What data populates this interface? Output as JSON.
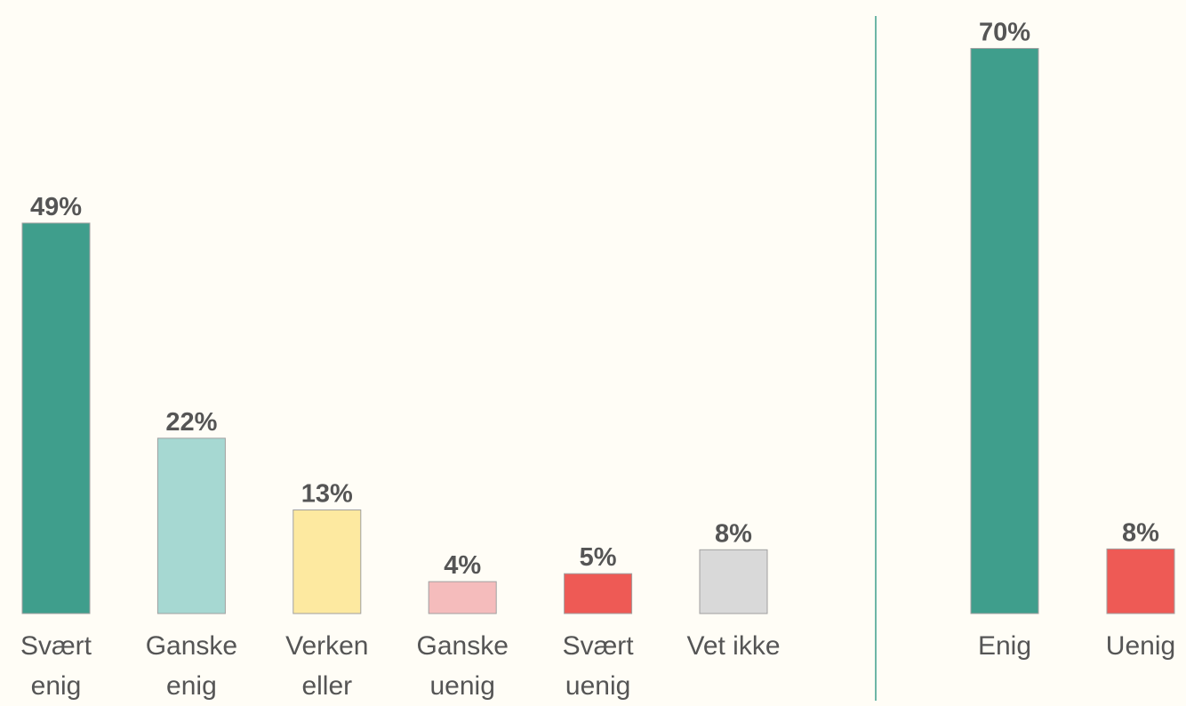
{
  "chart_data": [
    {
      "type": "bar",
      "categories": [
        "Svært\nenig",
        "Ganske\nenig",
        "Verken\neller",
        "Ganske\nuenig",
        "Svært\nuenig",
        "Vet ikke"
      ],
      "values": [
        49,
        22,
        13,
        4,
        5,
        8
      ],
      "value_labels": [
        "49%",
        "22%",
        "13%",
        "4%",
        "5%",
        "8%"
      ],
      "colors": [
        "#3f9e8c",
        "#a6d8d2",
        "#fde9a0",
        "#f5bcbc",
        "#ee5a55",
        "#d9d9d9"
      ],
      "ylim": [
        0,
        77
      ]
    },
    {
      "type": "bar",
      "categories": [
        "Enig",
        "Uenig"
      ],
      "values": [
        70,
        8
      ],
      "value_labels": [
        "70%",
        "8%"
      ],
      "colors": [
        "#3f9e8c",
        "#ee5a55"
      ],
      "ylim": [
        0,
        76
      ]
    }
  ]
}
